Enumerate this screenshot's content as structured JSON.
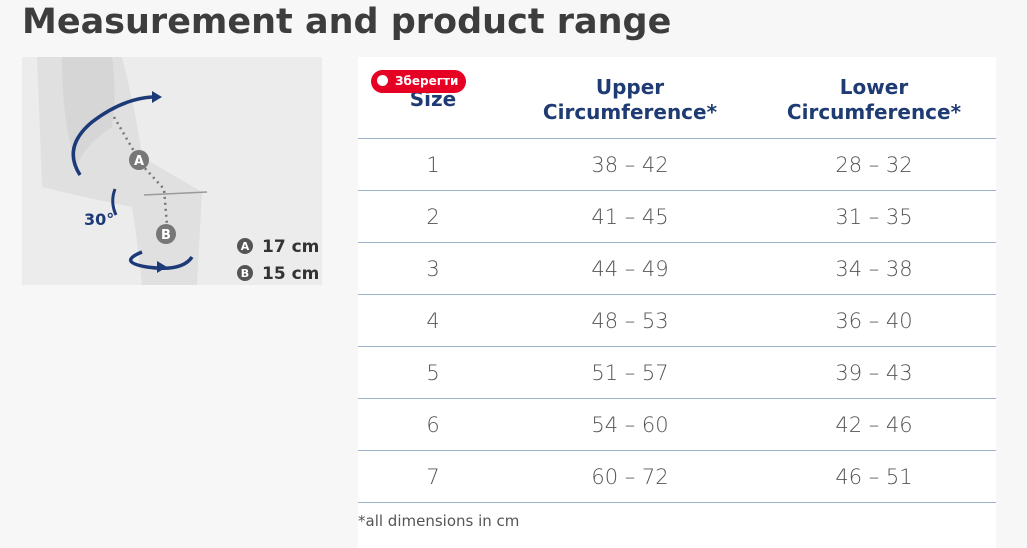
{
  "header": {
    "title": "Measurement and product range"
  },
  "diagram": {
    "label_a": "A",
    "label_b": "B",
    "angle": "30°",
    "legend": [
      {
        "marker": "A",
        "text": "17 cm"
      },
      {
        "marker": "B",
        "text": "15 cm"
      }
    ]
  },
  "save_button": "Зберегти",
  "table": {
    "columns": [
      "Size",
      "Upper Circumference*",
      "Lower Circumference*"
    ],
    "rows": [
      [
        "1",
        "38 – 42",
        "28 – 32"
      ],
      [
        "2",
        "41 – 45",
        "31 – 35"
      ],
      [
        "3",
        "44 – 49",
        "34 – 38"
      ],
      [
        "4",
        "48 – 53",
        "36 – 40"
      ],
      [
        "5",
        "51 – 57",
        "39 – 43"
      ],
      [
        "6",
        "54 – 60",
        "42 – 46"
      ],
      [
        "7",
        "60 – 72",
        "46 – 51"
      ]
    ],
    "footnote": "*all dimensions in cm"
  }
}
